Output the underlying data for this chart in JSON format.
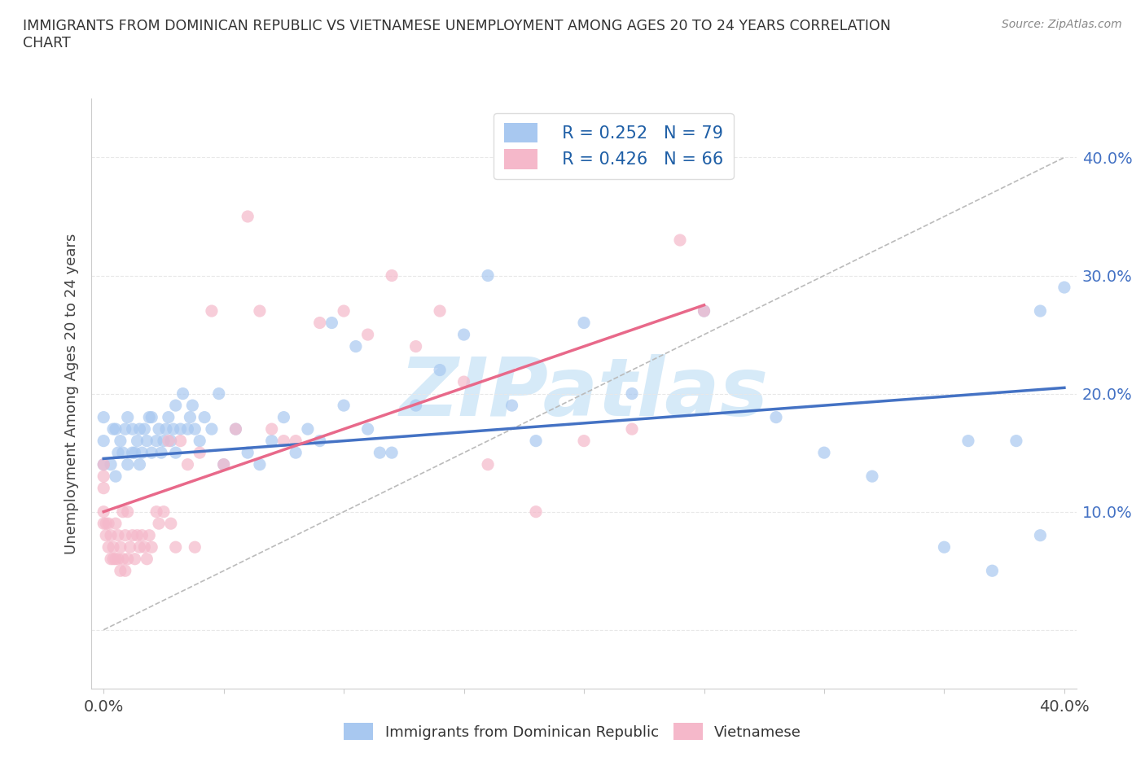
{
  "title": "IMMIGRANTS FROM DOMINICAN REPUBLIC VS VIETNAMESE UNEMPLOYMENT AMONG AGES 20 TO 24 YEARS CORRELATION\nCHART",
  "source": "Source: ZipAtlas.com",
  "ylabel": "Unemployment Among Ages 20 to 24 years",
  "xlim": [
    -0.005,
    0.405
  ],
  "ylim": [
    -0.05,
    0.45
  ],
  "ytick_positions": [
    0.0,
    0.1,
    0.2,
    0.3,
    0.4
  ],
  "xtick_positions": [
    0.0,
    0.05,
    0.1,
    0.15,
    0.2,
    0.25,
    0.3,
    0.35,
    0.4
  ],
  "xtick_labels": [
    "0.0%",
    "",
    "",
    "",
    "",
    "",
    "",
    "",
    "40.0%"
  ],
  "right_ytick_labels": [
    "",
    "10.0%",
    "20.0%",
    "30.0%",
    "40.0%"
  ],
  "legend_blue_r": "R = 0.252",
  "legend_blue_n": "N = 79",
  "legend_pink_r": "R = 0.426",
  "legend_pink_n": "N = 66",
  "blue_color": "#A8C8F0",
  "pink_color": "#F5B8CA",
  "blue_line_color": "#4472C4",
  "pink_line_color": "#E8698A",
  "trendline_dashed_color": "#BBBBBB",
  "watermark_color": "#D6EAF8",
  "watermark_text": "ZIPatlas",
  "background_color": "#FFFFFF",
  "blue_scatter_x": [
    0.0,
    0.0,
    0.0,
    0.003,
    0.004,
    0.005,
    0.005,
    0.006,
    0.007,
    0.008,
    0.009,
    0.01,
    0.01,
    0.012,
    0.012,
    0.013,
    0.014,
    0.015,
    0.015,
    0.016,
    0.017,
    0.018,
    0.019,
    0.02,
    0.02,
    0.022,
    0.023,
    0.024,
    0.025,
    0.026,
    0.027,
    0.028,
    0.029,
    0.03,
    0.03,
    0.032,
    0.033,
    0.035,
    0.036,
    0.037,
    0.038,
    0.04,
    0.042,
    0.045,
    0.048,
    0.05,
    0.055,
    0.06,
    0.065,
    0.07,
    0.075,
    0.08,
    0.085,
    0.09,
    0.095,
    0.1,
    0.105,
    0.11,
    0.115,
    0.12,
    0.13,
    0.14,
    0.15,
    0.16,
    0.17,
    0.18,
    0.2,
    0.22,
    0.25,
    0.28,
    0.3,
    0.32,
    0.35,
    0.36,
    0.37,
    0.38,
    0.39,
    0.39,
    0.4
  ],
  "blue_scatter_y": [
    0.14,
    0.16,
    0.18,
    0.14,
    0.17,
    0.13,
    0.17,
    0.15,
    0.16,
    0.15,
    0.17,
    0.14,
    0.18,
    0.15,
    0.17,
    0.15,
    0.16,
    0.14,
    0.17,
    0.15,
    0.17,
    0.16,
    0.18,
    0.15,
    0.18,
    0.16,
    0.17,
    0.15,
    0.16,
    0.17,
    0.18,
    0.16,
    0.17,
    0.15,
    0.19,
    0.17,
    0.2,
    0.17,
    0.18,
    0.19,
    0.17,
    0.16,
    0.18,
    0.17,
    0.2,
    0.14,
    0.17,
    0.15,
    0.14,
    0.16,
    0.18,
    0.15,
    0.17,
    0.16,
    0.26,
    0.19,
    0.24,
    0.17,
    0.15,
    0.15,
    0.19,
    0.22,
    0.25,
    0.3,
    0.19,
    0.16,
    0.26,
    0.2,
    0.27,
    0.18,
    0.15,
    0.13,
    0.07,
    0.16,
    0.05,
    0.16,
    0.27,
    0.08,
    0.29
  ],
  "pink_scatter_x": [
    0.0,
    0.0,
    0.0,
    0.0,
    0.0,
    0.001,
    0.001,
    0.002,
    0.002,
    0.003,
    0.003,
    0.004,
    0.004,
    0.005,
    0.005,
    0.006,
    0.006,
    0.007,
    0.007,
    0.008,
    0.008,
    0.009,
    0.009,
    0.01,
    0.01,
    0.011,
    0.012,
    0.013,
    0.014,
    0.015,
    0.016,
    0.017,
    0.018,
    0.019,
    0.02,
    0.022,
    0.023,
    0.025,
    0.027,
    0.028,
    0.03,
    0.032,
    0.035,
    0.038,
    0.04,
    0.045,
    0.05,
    0.055,
    0.06,
    0.065,
    0.07,
    0.075,
    0.08,
    0.09,
    0.1,
    0.11,
    0.12,
    0.13,
    0.14,
    0.15,
    0.16,
    0.18,
    0.2,
    0.22,
    0.24,
    0.25
  ],
  "pink_scatter_y": [
    0.14,
    0.13,
    0.12,
    0.1,
    0.09,
    0.09,
    0.08,
    0.07,
    0.09,
    0.06,
    0.08,
    0.06,
    0.07,
    0.06,
    0.09,
    0.06,
    0.08,
    0.05,
    0.07,
    0.06,
    0.1,
    0.05,
    0.08,
    0.06,
    0.1,
    0.07,
    0.08,
    0.06,
    0.08,
    0.07,
    0.08,
    0.07,
    0.06,
    0.08,
    0.07,
    0.1,
    0.09,
    0.1,
    0.16,
    0.09,
    0.07,
    0.16,
    0.14,
    0.07,
    0.15,
    0.27,
    0.14,
    0.17,
    0.35,
    0.27,
    0.17,
    0.16,
    0.16,
    0.26,
    0.27,
    0.25,
    0.3,
    0.24,
    0.27,
    0.21,
    0.14,
    0.1,
    0.16,
    0.17,
    0.33,
    0.27
  ],
  "blue_trend_x": [
    0.0,
    0.4
  ],
  "blue_trend_y": [
    0.145,
    0.205
  ],
  "pink_trend_x": [
    0.0,
    0.25
  ],
  "pink_trend_y": [
    0.1,
    0.275
  ],
  "dashed_trend_x": [
    0.0,
    0.4
  ],
  "dashed_trend_y": [
    0.0,
    0.4
  ],
  "grid_color": "#E8E8E8",
  "grid_linestyle": "--"
}
